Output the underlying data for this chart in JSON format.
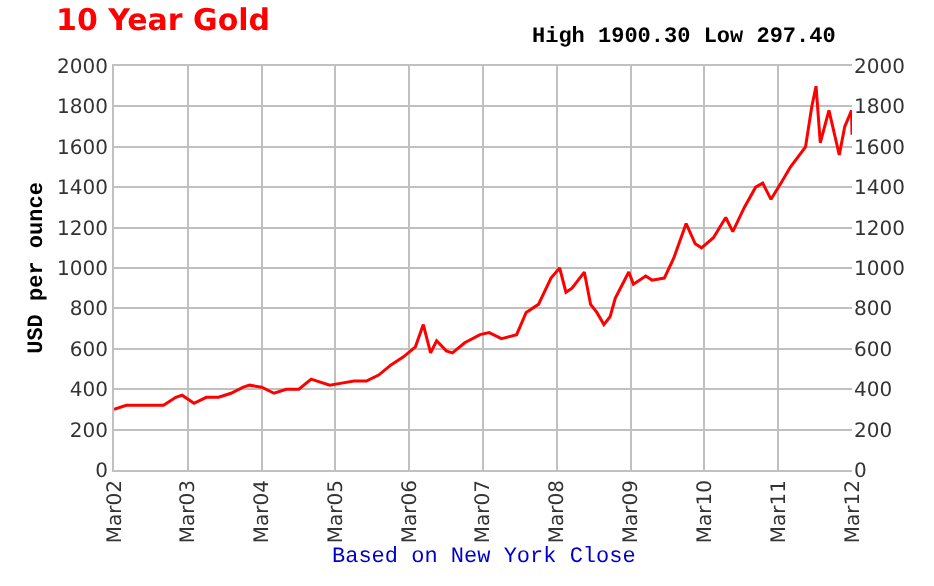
{
  "chart_data": {
    "type": "line",
    "title": "10 Year Gold",
    "subtitle": "High 1900.30 Low 297.40",
    "ylabel": "USD per ounce",
    "annotations": [
      "Based on New York Close"
    ],
    "x": [
      "2002-03-01",
      "2002-05-01",
      "2002-07-01",
      "2002-09-01",
      "2002-11-01",
      "2003-01-01",
      "2003-02-01",
      "2003-04-01",
      "2003-06-01",
      "2003-08-01",
      "2003-10-01",
      "2003-12-01",
      "2004-01-01",
      "2004-03-01",
      "2004-05-01",
      "2004-07-01",
      "2004-09-01",
      "2004-11-01",
      "2004-12-01",
      "2005-02-01",
      "2005-04-01",
      "2005-06-01",
      "2005-08-01",
      "2005-10-01",
      "2005-12-01",
      "2006-02-01",
      "2006-04-01",
      "2006-05-10",
      "2006-06-15",
      "2006-07-15",
      "2006-09-01",
      "2006-10-01",
      "2006-12-01",
      "2007-02-15",
      "2007-04-01",
      "2007-06-01",
      "2007-08-15",
      "2007-10-01",
      "2007-12-01",
      "2008-02-01",
      "2008-03-15",
      "2008-04-15",
      "2008-05-15",
      "2008-07-15",
      "2008-08-15",
      "2008-09-15",
      "2008-10-20",
      "2008-11-20",
      "2008-12-15",
      "2009-02-20",
      "2009-03-15",
      "2009-05-15",
      "2009-06-15",
      "2009-08-15",
      "2009-10-01",
      "2009-12-01",
      "2010-01-15",
      "2010-02-15",
      "2010-04-15",
      "2010-06-15",
      "2010-07-20",
      "2010-09-15",
      "2010-11-10",
      "2010-12-15",
      "2011-01-25",
      "2011-03-15",
      "2011-05-01",
      "2011-07-15",
      "2011-08-15",
      "2011-09-05",
      "2011-09-26",
      "2011-11-08",
      "2011-12-29",
      "2012-01-25",
      "2012-02-28",
      "2012-03-01"
    ],
    "series": [
      {
        "color": "#ff0000",
        "values": [
          300,
          320,
          320,
          320,
          320,
          360,
          370,
          330,
          360,
          360,
          380,
          410,
          420,
          410,
          380,
          400,
          400,
          450,
          440,
          420,
          430,
          440,
          440,
          470,
          520,
          560,
          610,
          720,
          580,
          640,
          590,
          580,
          630,
          670,
          680,
          650,
          670,
          780,
          820,
          950,
          1000,
          880,
          900,
          980,
          820,
          780,
          720,
          760,
          850,
          980,
          920,
          960,
          940,
          950,
          1050,
          1220,
          1120,
          1100,
          1150,
          1250,
          1180,
          1300,
          1400,
          1420,
          1340,
          1420,
          1500,
          1600,
          1800,
          1900,
          1620,
          1780,
          1560,
          1700,
          1780,
          1660
        ]
      }
    ],
    "xlim": [
      "2002-03-01",
      "2012-03-01"
    ],
    "xticks": [
      {
        "value": "2002-03-01",
        "label": "Mar02"
      },
      {
        "value": "2003-03-01",
        "label": "Mar03"
      },
      {
        "value": "2004-03-01",
        "label": "Mar04"
      },
      {
        "value": "2005-03-01",
        "label": "Mar05"
      },
      {
        "value": "2006-03-01",
        "label": "Mar06"
      },
      {
        "value": "2007-03-01",
        "label": "Mar07"
      },
      {
        "value": "2008-03-01",
        "label": "Mar08"
      },
      {
        "value": "2009-03-01",
        "label": "Mar09"
      },
      {
        "value": "2010-03-01",
        "label": "Mar10"
      },
      {
        "value": "2011-03-01",
        "label": "Mar11"
      },
      {
        "value": "2012-03-01",
        "label": "Mar12"
      }
    ],
    "ylim": [
      0,
      2000
    ],
    "yticks": [
      0,
      200,
      400,
      600,
      800,
      1000,
      1200,
      1400,
      1600,
      1800,
      2000
    ],
    "y2lim": [
      0,
      2000
    ],
    "y2ticks": [
      0,
      200,
      400,
      600,
      800,
      1000,
      1200,
      1400,
      1600,
      1800,
      2000
    ],
    "grid": true,
    "legend": false,
    "marker": "none",
    "line_style": "solid"
  }
}
